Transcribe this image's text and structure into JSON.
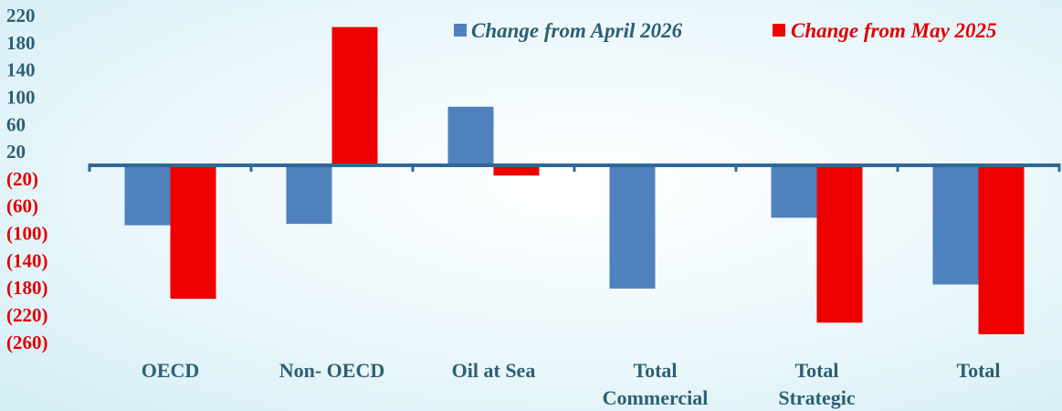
{
  "chart_data": {
    "type": "bar",
    "categories": [
      [
        "OECD"
      ],
      [
        "Non- OECD"
      ],
      [
        "Oil at Sea"
      ],
      [
        "Total",
        "Commercial"
      ],
      [
        "Total",
        "Strategic"
      ],
      [
        "Total"
      ]
    ],
    "series": [
      {
        "name": "Change from April 2026",
        "color": "#4f81bd",
        "values": [
          -88,
          -86,
          86,
          -181,
          -77,
          -175
        ]
      },
      {
        "name": "Change from May 2025",
        "color": "#ee0000",
        "values": [
          -196,
          203,
          -15,
          0,
          -231,
          -248
        ]
      }
    ],
    "yticks": [
      220,
      180,
      140,
      100,
      60,
      20,
      -20,
      -60,
      -100,
      -140,
      -180,
      -220,
      -260
    ],
    "ytick_labels": [
      "220",
      "180",
      "140",
      "100",
      "60",
      "20",
      "(20)",
      "(60)",
      "(100)",
      "(140)",
      "(180)",
      "(220)",
      "(260)"
    ],
    "positive_tick_color": "#2e5f73",
    "negative_tick_color": "#e00000",
    "axis_color": "#2f6896",
    "legend_position": "top-right",
    "grid": false
  }
}
